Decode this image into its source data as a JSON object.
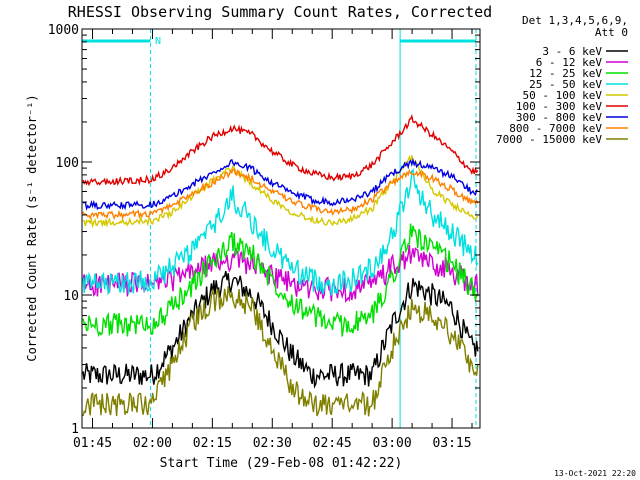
{
  "chart_data": {
    "type": "line",
    "title": "RHESSI Observing Summary Count Rates, Corrected",
    "xlabel": "Start Time (29-Feb-08 01:42:22)",
    "ylabel": "Corrected Count Rate (s⁻¹ detector⁻¹)",
    "footer": "13-Oct-2021 22:20",
    "legend_header": [
      "Det 1,3,4,5,6,9,",
      "Att 0"
    ],
    "legend_position": "right-outside",
    "y_scale": "log",
    "ylim": [
      1,
      1000
    ],
    "y_ticks": [
      "1",
      "10",
      "100",
      "1000"
    ],
    "xlim": [
      "01:42:22",
      "03:22:00"
    ],
    "x_ticks": [
      "01:45",
      "02:00",
      "02:15",
      "02:30",
      "02:45",
      "03:00",
      "03:15"
    ],
    "flag_label": "N",
    "night_bands": [
      [
        "01:42:22",
        "01:59:30"
      ],
      [
        "03:02:00",
        "03:21:00"
      ]
    ],
    "series": [
      {
        "name": "3 - 6 keV",
        "color": "#000000",
        "x": [
          "01:42",
          "01:50",
          "02:00",
          "02:05",
          "02:10",
          "02:15",
          "02:20",
          "02:25",
          "02:30",
          "02:35",
          "02:40",
          "02:45",
          "02:50",
          "02:55",
          "03:00",
          "03:05",
          "03:10",
          "03:15",
          "03:20"
        ],
        "values": [
          2.5,
          2.5,
          2.5,
          4,
          7,
          11,
          13,
          10,
          6,
          3.5,
          2.5,
          2.5,
          2.5,
          2.5,
          6,
          12,
          10,
          8,
          4
        ]
      },
      {
        "name": "6 - 12 keV",
        "color": "#d000d0",
        "x": [
          "01:42",
          "01:50",
          "02:00",
          "02:05",
          "02:10",
          "02:15",
          "02:20",
          "02:25",
          "02:30",
          "02:35",
          "02:40",
          "02:45",
          "02:50",
          "02:55",
          "03:00",
          "03:05",
          "03:10",
          "03:15",
          "03:20"
        ],
        "values": [
          12,
          12,
          12,
          13,
          15,
          17,
          19,
          17,
          14,
          12,
          11,
          11,
          11,
          12,
          16,
          20,
          17,
          15,
          12
        ]
      },
      {
        "name": "12 - 25 keV",
        "color": "#00e000",
        "x": [
          "01:42",
          "01:50",
          "02:00",
          "02:05",
          "02:10",
          "02:15",
          "02:20",
          "02:25",
          "02:30",
          "02:35",
          "02:40",
          "02:45",
          "02:50",
          "02:55",
          "03:00",
          "03:05",
          "03:10",
          "03:15",
          "03:20"
        ],
        "values": [
          6,
          6,
          6,
          8,
          12,
          18,
          25,
          20,
          13,
          9,
          7,
          6,
          6,
          7,
          14,
          30,
          22,
          17,
          11
        ]
      },
      {
        "name": "25 - 50 keV",
        "color": "#00e0e0",
        "x": [
          "01:42",
          "01:50",
          "02:00",
          "02:05",
          "02:10",
          "02:15",
          "02:20",
          "02:25",
          "02:30",
          "02:35",
          "02:40",
          "02:45",
          "02:50",
          "02:55",
          "03:00",
          "03:05",
          "03:10",
          "03:15",
          "03:20"
        ],
        "values": [
          12,
          12,
          13,
          16,
          22,
          32,
          55,
          35,
          22,
          16,
          13,
          12,
          13,
          16,
          28,
          75,
          40,
          30,
          20
        ]
      },
      {
        "name": "50 - 100 keV",
        "color": "#d4c800",
        "x": [
          "01:42",
          "01:50",
          "02:00",
          "02:05",
          "02:10",
          "02:15",
          "02:20",
          "02:25",
          "02:30",
          "02:35",
          "02:40",
          "02:45",
          "02:50",
          "02:55",
          "03:00",
          "03:05",
          "03:10",
          "03:15",
          "03:20"
        ],
        "values": [
          35,
          35,
          36,
          42,
          55,
          72,
          90,
          68,
          52,
          42,
          37,
          35,
          37,
          45,
          70,
          110,
          62,
          48,
          38
        ]
      },
      {
        "name": "100 - 300 keV",
        "color": "#e00000",
        "x": [
          "01:42",
          "01:50",
          "02:00",
          "02:05",
          "02:10",
          "02:15",
          "02:20",
          "02:25",
          "02:30",
          "02:35",
          "02:40",
          "02:45",
          "02:50",
          "02:55",
          "03:00",
          "03:05",
          "03:10",
          "03:15",
          "03:20"
        ],
        "values": [
          70,
          71,
          74,
          90,
          120,
          155,
          180,
          160,
          120,
          95,
          82,
          76,
          78,
          95,
          140,
          210,
          160,
          120,
          85
        ]
      },
      {
        "name": "300 - 800 keV",
        "color": "#0000e0",
        "x": [
          "01:42",
          "01:50",
          "02:00",
          "02:05",
          "02:10",
          "02:15",
          "02:20",
          "02:25",
          "02:30",
          "02:35",
          "02:40",
          "02:45",
          "02:50",
          "02:55",
          "03:00",
          "03:05",
          "03:10",
          "03:15",
          "03:20"
        ],
        "values": [
          47,
          47,
          48,
          55,
          68,
          82,
          100,
          88,
          70,
          58,
          52,
          50,
          52,
          60,
          82,
          100,
          90,
          78,
          60
        ]
      },
      {
        "name": "800 - 7000 keV",
        "color": "#ff8000",
        "x": [
          "01:42",
          "01:50",
          "02:00",
          "02:05",
          "02:10",
          "02:15",
          "02:20",
          "02:25",
          "02:30",
          "02:35",
          "02:40",
          "02:45",
          "02:50",
          "02:55",
          "03:00",
          "03:05",
          "03:10",
          "03:15",
          "03:20"
        ],
        "values": [
          40,
          40,
          41,
          47,
          58,
          70,
          85,
          75,
          60,
          50,
          45,
          42,
          44,
          52,
          70,
          85,
          75,
          62,
          50
        ]
      },
      {
        "name": "7000 - 15000 keV",
        "color": "#808000",
        "x": [
          "01:42",
          "01:50",
          "02:00",
          "02:05",
          "02:10",
          "02:15",
          "02:20",
          "02:25",
          "02:30",
          "02:35",
          "02:40",
          "02:45",
          "02:50",
          "02:55",
          "03:00",
          "03:05",
          "03:10",
          "03:15",
          "03:20"
        ],
        "values": [
          1.5,
          1.5,
          1.5,
          3,
          6,
          9,
          10,
          8,
          4,
          2,
          1.5,
          1.5,
          1.5,
          1.5,
          4,
          8,
          7,
          5,
          3
        ]
      }
    ]
  }
}
